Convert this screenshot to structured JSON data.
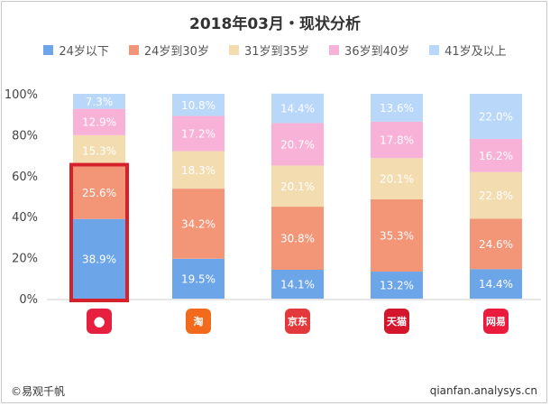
{
  "title": "2018年03月・现状分析",
  "footer": {
    "left": "©易观千帆",
    "right": "qianfan.analysys.cn"
  },
  "icons": [
    {
      "name": "xiaohongshu-icon",
      "glyph": "●",
      "color": "#e8203f"
    },
    {
      "name": "taobao-icon",
      "glyph": "淘",
      "color": "#f26a1b"
    },
    {
      "name": "jd-icon",
      "glyph": "京东",
      "color": "#e4393c"
    },
    {
      "name": "tmall-icon",
      "glyph": "天猫",
      "color": "#d4162c"
    },
    {
      "name": "netease-kaola-icon",
      "glyph": "网易",
      "color": "#ea1b3c"
    }
  ],
  "highlight": {
    "bar_index": 0,
    "color": "#d6212b"
  },
  "chart_data": {
    "type": "bar",
    "stacked": true,
    "title": "2018年03月・现状分析",
    "categories": [
      "",
      "",
      "",
      "",
      ""
    ],
    "ylim": [
      0,
      100
    ],
    "yticks": [
      "0%",
      "20%",
      "40%",
      "60%",
      "80%",
      "100%"
    ],
    "legend_position": "top",
    "series": [
      {
        "name": "24岁以下",
        "color": "#6ca6e8",
        "values": [
          38.9,
          19.5,
          14.1,
          13.2,
          14.4
        ]
      },
      {
        "name": "24岁到30岁",
        "color": "#f39577",
        "values": [
          25.6,
          34.2,
          30.8,
          35.3,
          24.6
        ]
      },
      {
        "name": "31岁到35岁",
        "color": "#f3dcaf",
        "values": [
          15.3,
          18.3,
          20.1,
          20.1,
          22.8
        ]
      },
      {
        "name": "36岁到40岁",
        "color": "#f9b2d7",
        "values": [
          12.9,
          17.2,
          20.7,
          17.8,
          16.2
        ]
      },
      {
        "name": "41岁及以上",
        "color": "#b8d7f9",
        "values": [
          7.3,
          10.8,
          14.4,
          13.6,
          22.0
        ]
      }
    ]
  }
}
